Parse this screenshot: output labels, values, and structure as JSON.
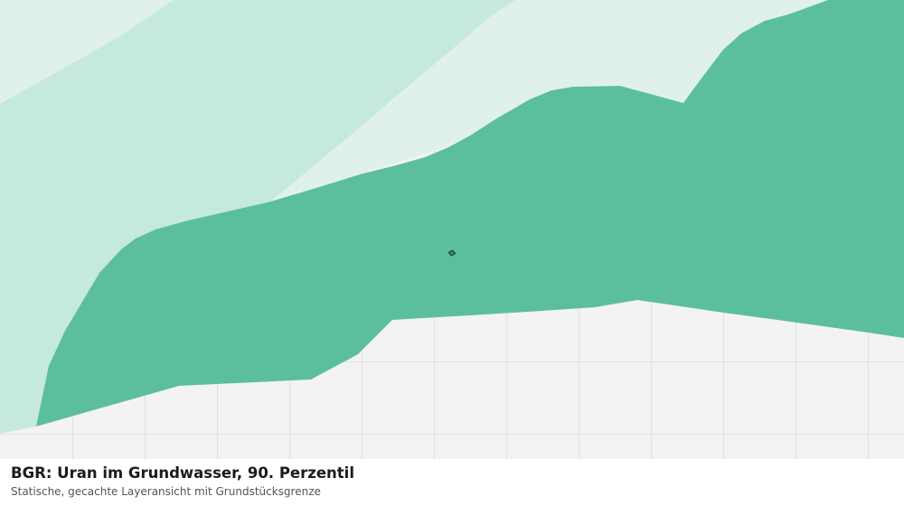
{
  "caption": {
    "title": "BGR: Uran im Grundwasser, 90. Perzentil",
    "subtitle": "Statische, gecachte Layeransicht mit Grundstücksgrenze"
  },
  "colors": {
    "background": "#f3f4f2",
    "grid": "#e0e1df",
    "zone_lightest": "#dff1ea",
    "zone_light": "#c5e9dc",
    "zone_main": "#5bbf9d",
    "parcel_fill": "#2e8b57",
    "parcel_stroke": "#1a3d2c"
  },
  "map": {
    "layers": [
      "zone-lightest",
      "zone-light",
      "zone-main"
    ],
    "marker": "parcel-boundary"
  }
}
